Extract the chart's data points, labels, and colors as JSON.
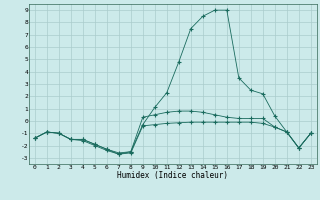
{
  "xlabel": "Humidex (Indice chaleur)",
  "bg_color": "#cceaea",
  "grid_color": "#aacccc",
  "line_color": "#1a6b5e",
  "xlim": [
    -0.5,
    23.5
  ],
  "ylim": [
    -3.5,
    9.5
  ],
  "xticks": [
    0,
    1,
    2,
    3,
    4,
    5,
    6,
    7,
    8,
    9,
    10,
    11,
    12,
    13,
    14,
    15,
    16,
    17,
    18,
    19,
    20,
    21,
    22,
    23
  ],
  "yticks": [
    -3,
    -2,
    -1,
    0,
    1,
    2,
    3,
    4,
    5,
    6,
    7,
    8,
    9
  ],
  "series_bottom": [
    [
      0,
      -1.4
    ],
    [
      1,
      -0.9
    ],
    [
      2,
      -1.0
    ],
    [
      3,
      -1.5
    ],
    [
      4,
      -1.6
    ],
    [
      5,
      -2.0
    ],
    [
      6,
      -2.4
    ],
    [
      7,
      -2.7
    ],
    [
      8,
      -2.6
    ],
    [
      9,
      -0.4
    ],
    [
      10,
      -0.3
    ],
    [
      11,
      -0.2
    ],
    [
      12,
      -0.15
    ],
    [
      13,
      -0.1
    ],
    [
      14,
      -0.1
    ],
    [
      15,
      -0.1
    ],
    [
      16,
      -0.1
    ],
    [
      17,
      -0.1
    ],
    [
      18,
      -0.1
    ],
    [
      19,
      -0.2
    ],
    [
      20,
      -0.5
    ],
    [
      21,
      -0.9
    ],
    [
      22,
      -2.2
    ],
    [
      23,
      -1.0
    ]
  ],
  "series_mid": [
    [
      0,
      -1.4
    ],
    [
      1,
      -0.9
    ],
    [
      2,
      -1.0
    ],
    [
      3,
      -1.5
    ],
    [
      4,
      -1.5
    ],
    [
      5,
      -1.9
    ],
    [
      6,
      -2.3
    ],
    [
      7,
      -2.6
    ],
    [
      8,
      -2.5
    ],
    [
      9,
      0.3
    ],
    [
      10,
      0.5
    ],
    [
      11,
      0.7
    ],
    [
      12,
      0.8
    ],
    [
      13,
      0.8
    ],
    [
      14,
      0.7
    ],
    [
      15,
      0.5
    ],
    [
      16,
      0.3
    ],
    [
      17,
      0.2
    ],
    [
      18,
      0.2
    ],
    [
      19,
      0.2
    ],
    [
      20,
      -0.5
    ],
    [
      21,
      -0.9
    ],
    [
      22,
      -2.2
    ],
    [
      23,
      -1.0
    ]
  ],
  "series_main": [
    [
      0,
      -1.4
    ],
    [
      1,
      -0.9
    ],
    [
      2,
      -1.0
    ],
    [
      3,
      -1.5
    ],
    [
      4,
      -1.5
    ],
    [
      5,
      -1.9
    ],
    [
      6,
      -2.3
    ],
    [
      7,
      -2.7
    ],
    [
      8,
      -2.5
    ],
    [
      9,
      -0.3
    ],
    [
      10,
      1.1
    ],
    [
      11,
      2.3
    ],
    [
      12,
      4.8
    ],
    [
      13,
      7.5
    ],
    [
      14,
      8.5
    ],
    [
      15,
      9.0
    ],
    [
      16,
      9.0
    ],
    [
      17,
      3.5
    ],
    [
      18,
      2.5
    ],
    [
      19,
      2.2
    ],
    [
      20,
      0.4
    ],
    [
      21,
      -0.9
    ],
    [
      22,
      -2.2
    ],
    [
      23,
      -1.0
    ]
  ]
}
